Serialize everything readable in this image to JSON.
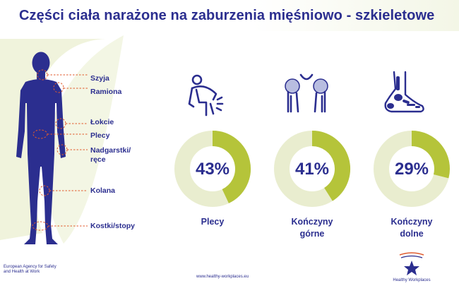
{
  "title": "Części ciała narażone na zaburzenia mięśniowo - szkieletowe",
  "body_labels": [
    {
      "text": "Szyja"
    },
    {
      "text": "Ramiona"
    },
    {
      "text": "Łokcie"
    },
    {
      "text": "Plecy"
    },
    {
      "text": "Nadgarstki/"
    },
    {
      "text": "ręce"
    },
    {
      "text": "Kolana"
    },
    {
      "text": "Kostki/stopy"
    }
  ],
  "categories": [
    {
      "icon": "back-pain-icon",
      "percent_text": "43%",
      "percent": 43,
      "label_line1": "Plecy",
      "label_line2": ""
    },
    {
      "icon": "shoulder-pain-icon",
      "percent_text": "41%",
      "percent": 41,
      "label_line1": "Kończyny",
      "label_line2": "górne"
    },
    {
      "icon": "foot-bones-icon",
      "percent_text": "29%",
      "percent": 29,
      "label_line1": "Kończyny",
      "label_line2": "dolne"
    }
  ],
  "colors": {
    "navy": "#2b2e8f",
    "green": "#b5c43a",
    "light_green": "#e9edcf",
    "leader_red": "#e05a2c"
  },
  "footer": {
    "org": "European Agency for Safety and Health at Work",
    "url": "www.healthy-workplaces.eu",
    "logo_text": "Healthy Workplaces"
  }
}
